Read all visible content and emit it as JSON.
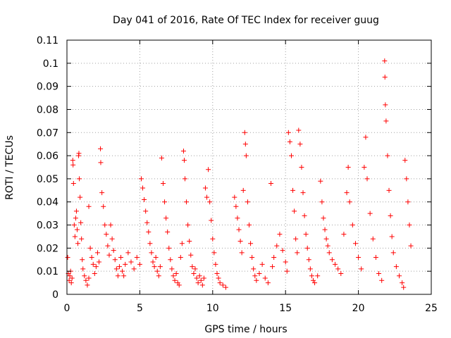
{
  "chart_data": {
    "type": "scatter",
    "title": "Day 041 of 2016, Rate Of TEC Index for receiver guug",
    "xlabel": "GPS time / hours",
    "ylabel": "ROTI / TECUs",
    "xlim": [
      0,
      25
    ],
    "ylim": [
      0,
      0.11
    ],
    "xticks": [
      0,
      5,
      10,
      15,
      20,
      25
    ],
    "yticks": [
      0,
      0.01,
      0.02,
      0.03,
      0.04,
      0.05,
      0.06,
      0.07,
      0.08,
      0.09,
      0.1,
      0.11
    ],
    "xtick_labels": [
      "0",
      "5",
      "10",
      "15",
      "20",
      "25"
    ],
    "ytick_labels": [
      "0",
      "0.01",
      "0.02",
      "0.03",
      "0.04",
      "0.05",
      "0.06",
      "0.07",
      "0.08",
      "0.09",
      "0.1",
      "0.11"
    ],
    "grid": true,
    "marker": "+",
    "color": "#ff0000",
    "series": [
      {
        "values": [
          [
            0.05,
            0.016
          ],
          [
            0.1,
            0.009
          ],
          [
            0.15,
            0.006
          ],
          [
            0.2,
            0.008
          ],
          [
            0.25,
            0.01
          ],
          [
            0.3,
            0.005
          ],
          [
            0.35,
            0.007
          ],
          [
            0.4,
            0.058
          ],
          [
            0.42,
            0.056
          ],
          [
            0.45,
            0.048
          ],
          [
            0.5,
            0.03
          ],
          [
            0.55,
            0.025
          ],
          [
            0.6,
            0.033
          ],
          [
            0.65,
            0.036
          ],
          [
            0.7,
            0.028
          ],
          [
            0.75,
            0.022
          ],
          [
            0.8,
            0.06
          ],
          [
            0.82,
            0.061
          ],
          [
            0.85,
            0.05
          ],
          [
            0.9,
            0.042
          ],
          [
            0.95,
            0.031
          ],
          [
            1.0,
            0.024
          ],
          [
            1.05,
            0.015
          ],
          [
            1.1,
            0.011
          ],
          [
            1.2,
            0.008
          ],
          [
            1.3,
            0.006
          ],
          [
            1.4,
            0.004
          ],
          [
            1.5,
            0.007
          ],
          [
            1.5,
            0.038
          ],
          [
            1.6,
            0.02
          ],
          [
            1.7,
            0.016
          ],
          [
            1.8,
            0.013
          ],
          [
            1.9,
            0.009
          ],
          [
            2.0,
            0.012
          ],
          [
            2.1,
            0.018
          ],
          [
            2.2,
            0.014
          ],
          [
            2.3,
            0.063
          ],
          [
            2.32,
            0.057
          ],
          [
            2.4,
            0.044
          ],
          [
            2.5,
            0.038
          ],
          [
            2.6,
            0.03
          ],
          [
            2.7,
            0.026
          ],
          [
            2.8,
            0.021
          ],
          [
            2.9,
            0.017
          ],
          [
            3.0,
            0.03
          ],
          [
            3.1,
            0.024
          ],
          [
            3.2,
            0.019
          ],
          [
            3.3,
            0.015
          ],
          [
            3.4,
            0.011
          ],
          [
            3.5,
            0.008
          ],
          [
            3.6,
            0.012
          ],
          [
            3.7,
            0.016
          ],
          [
            3.8,
            0.01
          ],
          [
            3.9,
            0.008
          ],
          [
            4.0,
            0.013
          ],
          [
            4.2,
            0.018
          ],
          [
            4.4,
            0.014
          ],
          [
            4.6,
            0.011
          ],
          [
            4.8,
            0.016
          ],
          [
            5.0,
            0.013
          ],
          [
            5.1,
            0.05
          ],
          [
            5.2,
            0.046
          ],
          [
            5.3,
            0.041
          ],
          [
            5.4,
            0.036
          ],
          [
            5.5,
            0.031
          ],
          [
            5.6,
            0.027
          ],
          [
            5.7,
            0.022
          ],
          [
            5.8,
            0.018
          ],
          [
            5.9,
            0.014
          ],
          [
            6.0,
            0.012
          ],
          [
            6.1,
            0.016
          ],
          [
            6.2,
            0.01
          ],
          [
            6.3,
            0.008
          ],
          [
            6.4,
            0.012
          ],
          [
            6.5,
            0.059
          ],
          [
            6.6,
            0.048
          ],
          [
            6.7,
            0.04
          ],
          [
            6.8,
            0.033
          ],
          [
            6.9,
            0.027
          ],
          [
            7.0,
            0.02
          ],
          [
            7.1,
            0.015
          ],
          [
            7.2,
            0.011
          ],
          [
            7.3,
            0.008
          ],
          [
            7.4,
            0.006
          ],
          [
            7.5,
            0.009
          ],
          [
            7.6,
            0.005
          ],
          [
            7.7,
            0.004
          ],
          [
            7.8,
            0.016
          ],
          [
            7.9,
            0.022
          ],
          [
            8.0,
            0.062
          ],
          [
            8.05,
            0.058
          ],
          [
            8.1,
            0.05
          ],
          [
            8.2,
            0.04
          ],
          [
            8.3,
            0.03
          ],
          [
            8.4,
            0.023
          ],
          [
            8.5,
            0.017
          ],
          [
            8.6,
            0.012
          ],
          [
            8.7,
            0.009
          ],
          [
            8.8,
            0.011
          ],
          [
            8.9,
            0.007
          ],
          [
            9.0,
            0.005
          ],
          [
            9.1,
            0.008
          ],
          [
            9.2,
            0.006
          ],
          [
            9.3,
            0.004
          ],
          [
            9.4,
            0.007
          ],
          [
            9.5,
            0.046
          ],
          [
            9.6,
            0.042
          ],
          [
            9.7,
            0.054
          ],
          [
            9.8,
            0.04
          ],
          [
            9.9,
            0.032
          ],
          [
            10.0,
            0.024
          ],
          [
            10.1,
            0.018
          ],
          [
            10.2,
            0.013
          ],
          [
            10.3,
            0.009
          ],
          [
            10.4,
            0.007
          ],
          [
            10.5,
            0.005
          ],
          [
            10.7,
            0.004
          ],
          [
            10.9,
            0.003
          ],
          [
            11.5,
            0.042
          ],
          [
            11.6,
            0.038
          ],
          [
            11.7,
            0.033
          ],
          [
            11.8,
            0.028
          ],
          [
            11.9,
            0.023
          ],
          [
            12.0,
            0.018
          ],
          [
            12.1,
            0.045
          ],
          [
            12.2,
            0.07
          ],
          [
            12.25,
            0.065
          ],
          [
            12.3,
            0.06
          ],
          [
            12.4,
            0.04
          ],
          [
            12.5,
            0.03
          ],
          [
            12.6,
            0.022
          ],
          [
            12.7,
            0.016
          ],
          [
            12.8,
            0.011
          ],
          [
            12.9,
            0.008
          ],
          [
            13.0,
            0.006
          ],
          [
            13.2,
            0.009
          ],
          [
            13.4,
            0.013
          ],
          [
            13.6,
            0.007
          ],
          [
            13.8,
            0.005
          ],
          [
            14.0,
            0.048
          ],
          [
            14.1,
            0.012
          ],
          [
            14.2,
            0.016
          ],
          [
            14.4,
            0.021
          ],
          [
            14.6,
            0.026
          ],
          [
            14.8,
            0.019
          ],
          [
            15.0,
            0.014
          ],
          [
            15.1,
            0.01
          ],
          [
            15.2,
            0.07
          ],
          [
            15.3,
            0.066
          ],
          [
            15.4,
            0.06
          ],
          [
            15.5,
            0.045
          ],
          [
            15.6,
            0.036
          ],
          [
            15.7,
            0.024
          ],
          [
            15.8,
            0.018
          ],
          [
            15.9,
            0.071
          ],
          [
            16.0,
            0.065
          ],
          [
            16.1,
            0.055
          ],
          [
            16.2,
            0.044
          ],
          [
            16.3,
            0.034
          ],
          [
            16.4,
            0.026
          ],
          [
            16.5,
            0.02
          ],
          [
            16.6,
            0.015
          ],
          [
            16.7,
            0.011
          ],
          [
            16.8,
            0.008
          ],
          [
            16.9,
            0.006
          ],
          [
            17.0,
            0.005
          ],
          [
            17.2,
            0.008
          ],
          [
            17.4,
            0.049
          ],
          [
            17.5,
            0.04
          ],
          [
            17.6,
            0.033
          ],
          [
            17.7,
            0.028
          ],
          [
            17.8,
            0.024
          ],
          [
            17.9,
            0.021
          ],
          [
            18.0,
            0.018
          ],
          [
            18.2,
            0.015
          ],
          [
            18.4,
            0.013
          ],
          [
            18.6,
            0.011
          ],
          [
            18.8,
            0.009
          ],
          [
            19.0,
            0.026
          ],
          [
            19.2,
            0.044
          ],
          [
            19.3,
            0.055
          ],
          [
            19.4,
            0.04
          ],
          [
            19.6,
            0.03
          ],
          [
            19.8,
            0.022
          ],
          [
            20.0,
            0.016
          ],
          [
            20.2,
            0.011
          ],
          [
            20.4,
            0.055
          ],
          [
            20.5,
            0.068
          ],
          [
            20.6,
            0.05
          ],
          [
            20.8,
            0.035
          ],
          [
            21.0,
            0.024
          ],
          [
            21.2,
            0.016
          ],
          [
            21.4,
            0.009
          ],
          [
            21.6,
            0.006
          ],
          [
            21.8,
            0.101
          ],
          [
            21.82,
            0.094
          ],
          [
            21.85,
            0.082
          ],
          [
            21.9,
            0.075
          ],
          [
            22.0,
            0.06
          ],
          [
            22.1,
            0.045
          ],
          [
            22.2,
            0.034
          ],
          [
            22.3,
            0.025
          ],
          [
            22.4,
            0.018
          ],
          [
            22.6,
            0.012
          ],
          [
            22.8,
            0.008
          ],
          [
            23.0,
            0.005
          ],
          [
            23.1,
            0.003
          ],
          [
            23.2,
            0.058
          ],
          [
            23.3,
            0.05
          ],
          [
            23.4,
            0.04
          ],
          [
            23.5,
            0.03
          ],
          [
            23.6,
            0.021
          ]
        ]
      }
    ]
  }
}
